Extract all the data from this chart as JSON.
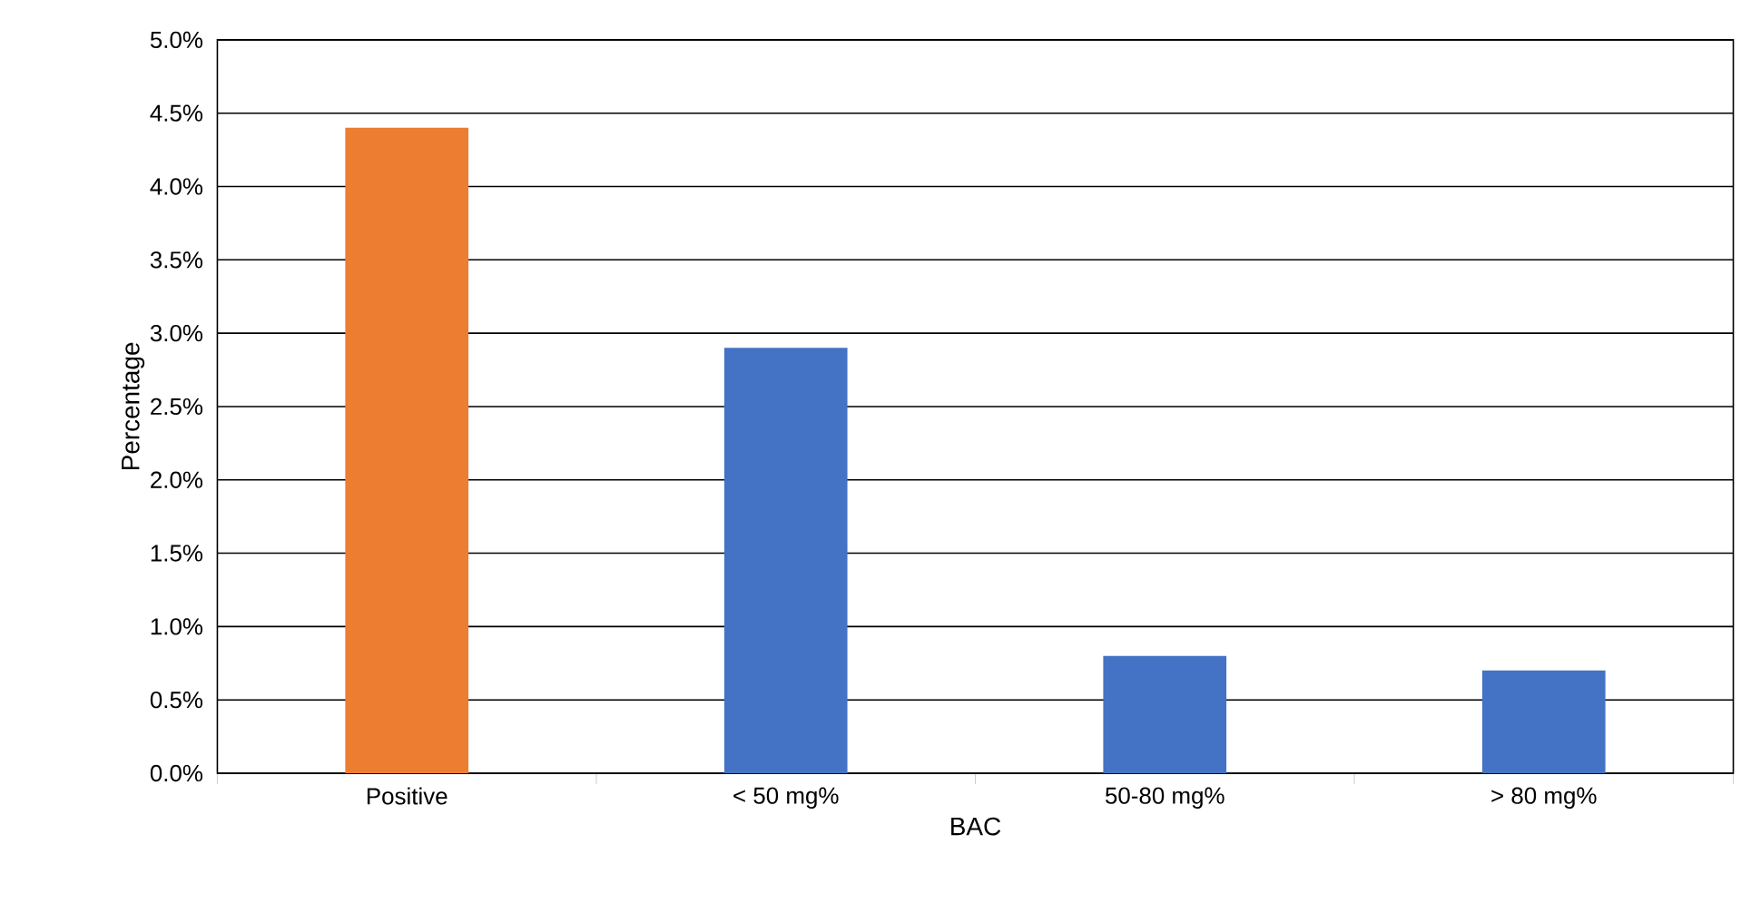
{
  "chart_data": {
    "type": "bar",
    "xlabel": "BAC",
    "ylabel": "Percentage",
    "categories": [
      "Positive",
      "< 50 mg%",
      "50-80 mg%",
      "> 80 mg%"
    ],
    "values": [
      4.4,
      2.9,
      0.8,
      0.7
    ],
    "colors": [
      "#ed7d31",
      "#4472c4",
      "#4472c4",
      "#4472c4"
    ],
    "ylim": [
      0,
      5
    ],
    "yticks": [
      {
        "value": 0,
        "label": "0.0%"
      },
      {
        "value": 0.5,
        "label": "0.5%"
      },
      {
        "value": 1,
        "label": "1.0%"
      },
      {
        "value": 1.5,
        "label": "1.5%"
      },
      {
        "value": 2,
        "label": "2.0%"
      },
      {
        "value": 2.5,
        "label": "2.5%"
      },
      {
        "value": 3,
        "label": "3.0%"
      },
      {
        "value": 3.5,
        "label": "3.5%"
      },
      {
        "value": 4,
        "label": "4.0%"
      },
      {
        "value": 4.5,
        "label": "4.5%"
      },
      {
        "value": 5,
        "label": "5.0%"
      }
    ],
    "grid": "y"
  }
}
